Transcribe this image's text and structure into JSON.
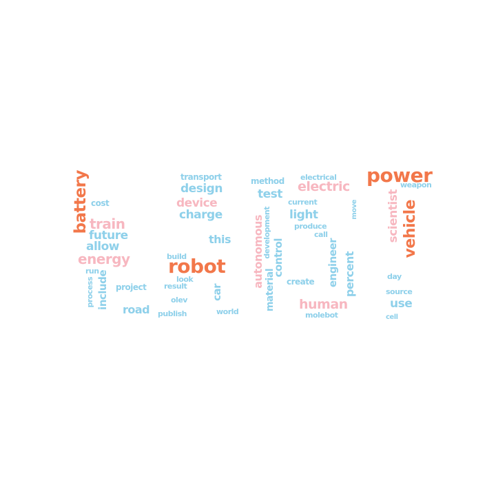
{
  "colors": {
    "orange": "#f2774a",
    "pink": "#f7b7c0",
    "blue": "#8ed0ea"
  },
  "words": {
    "battery": "battery",
    "cost": "cost",
    "train": "train",
    "future": "future",
    "allow": "allow",
    "energy": "energy",
    "run": "run",
    "process": "process",
    "include": "include",
    "project": "project",
    "road": "road",
    "transport": "transport",
    "design": "design",
    "device": "device",
    "charge": "charge",
    "this": "this",
    "build": "build",
    "robot": "robot",
    "look": "look",
    "result": "result",
    "olev": "olev",
    "publish": "publish",
    "car": "car",
    "world": "world",
    "method": "method",
    "test": "test",
    "autonomous": "autonomous",
    "development": "development",
    "control": "control",
    "material": "material",
    "electrical": "electrical",
    "electric": "electric",
    "current": "current",
    "light": "light",
    "produce": "produce",
    "call": "call",
    "engineer": "engineer",
    "percent": "percent",
    "create": "create",
    "human": "human",
    "molebot": "molebot",
    "move": "move",
    "power": "power",
    "weapon": "weapon",
    "scientist": "scientist",
    "vehicle": "vehicle",
    "day": "day",
    "source": "source",
    "use": "use",
    "cell": "cell"
  }
}
